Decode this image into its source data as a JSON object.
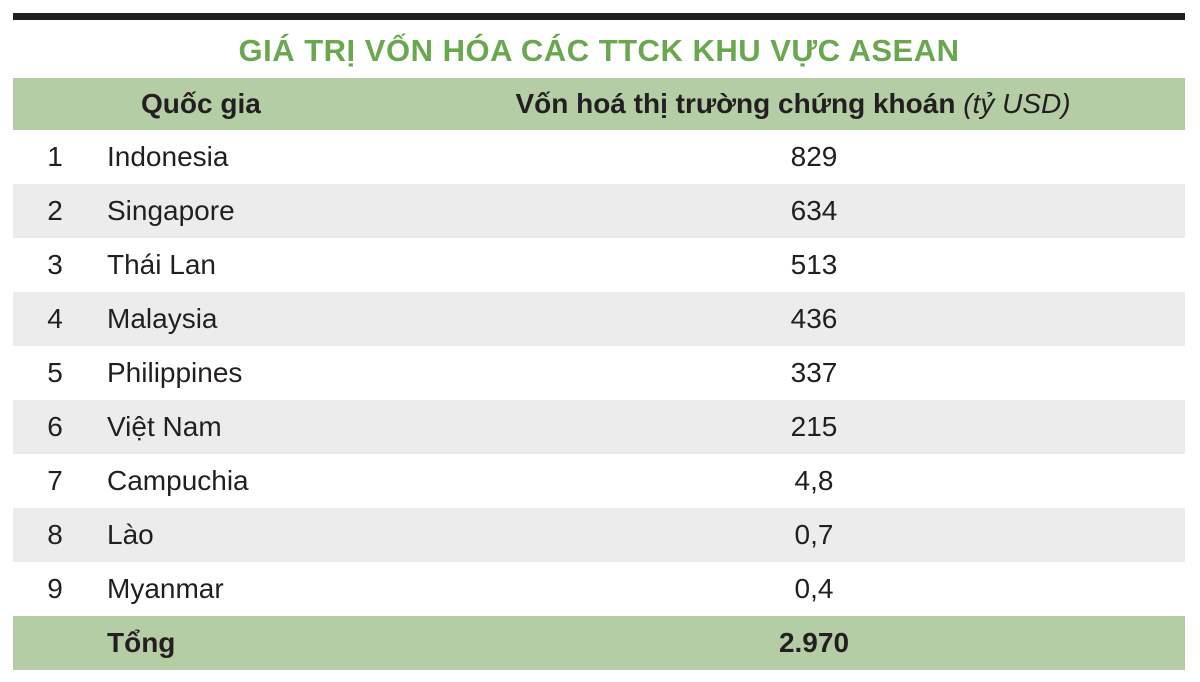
{
  "title": "GIÁ TRỊ VỐN HÓA CÁC TTCK KHU VỰC ASEAN",
  "header": {
    "country": "Quốc gia",
    "value": "Vốn hoá thị trường chứng khoán",
    "unit": "(tỷ USD)"
  },
  "rows": [
    {
      "num": "1",
      "country": "Indonesia",
      "value": "829"
    },
    {
      "num": "2",
      "country": "Singapore",
      "value": "634"
    },
    {
      "num": "3",
      "country": "Thái Lan",
      "value": "513"
    },
    {
      "num": "4",
      "country": "Malaysia",
      "value": "436"
    },
    {
      "num": "5",
      "country": "Philippines",
      "value": "337"
    },
    {
      "num": "6",
      "country": "Việt Nam",
      "value": "215"
    },
    {
      "num": "7",
      "country": "Campuchia",
      "value": "4,8"
    },
    {
      "num": "8",
      "country": "Lào",
      "value": "0,7"
    },
    {
      "num": "9",
      "country": "Myanmar",
      "value": "0,4"
    }
  ],
  "total": {
    "label": "Tổng",
    "value": "2.970"
  },
  "colors": {
    "title": "#6aa84f",
    "header_bg": "#b5cda5",
    "stripe": "#ececec",
    "rule": "#231f20"
  }
}
